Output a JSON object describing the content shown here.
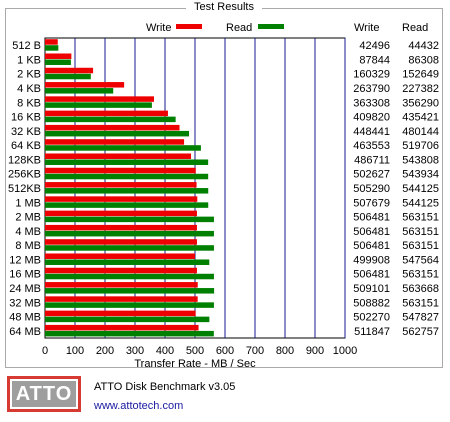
{
  "frame_title": "Test Results",
  "footer": {
    "logo_text": "ATTO",
    "product": "ATTO Disk Benchmark v3.05",
    "website": "www.attotech.com"
  },
  "colors": {
    "write": "#ee0000",
    "read": "#008000",
    "grid": "#1a1a8c"
  },
  "chart_data": {
    "type": "bar",
    "orientation": "horizontal",
    "xlabel": "Transfer Rate - MB / Sec",
    "xlim": [
      0,
      1000
    ],
    "xticks": [
      0,
      100,
      200,
      300,
      400,
      500,
      600,
      700,
      800,
      900,
      1000
    ],
    "categories": [
      "512 B",
      "1 KB",
      "2 KB",
      "4 KB",
      "8 KB",
      "16 KB",
      "32 KB",
      "64 KB",
      "128KB",
      "256KB",
      "512KB",
      "1 MB",
      "2 MB",
      "4 MB",
      "8 MB",
      "12 MB",
      "16 MB",
      "24 MB",
      "32 MB",
      "48 MB",
      "64 MB"
    ],
    "legend": {
      "position": "top",
      "write_label": "Write",
      "read_label": "Read"
    },
    "table_headers": {
      "write": "Write",
      "read": "Read"
    },
    "series": [
      {
        "name": "Write",
        "values": [
          42496,
          87844,
          160329,
          263790,
          363308,
          409820,
          448441,
          463553,
          486711,
          502627,
          505290,
          507679,
          506481,
          506481,
          506481,
          499908,
          506481,
          509101,
          508882,
          502270,
          511847
        ]
      },
      {
        "name": "Read",
        "values": [
          44432,
          86308,
          152649,
          227382,
          356290,
          435421,
          480144,
          519706,
          543808,
          543934,
          544125,
          544125,
          563151,
          563151,
          563151,
          547564,
          563151,
          563668,
          563151,
          547827,
          562757
        ]
      }
    ]
  }
}
